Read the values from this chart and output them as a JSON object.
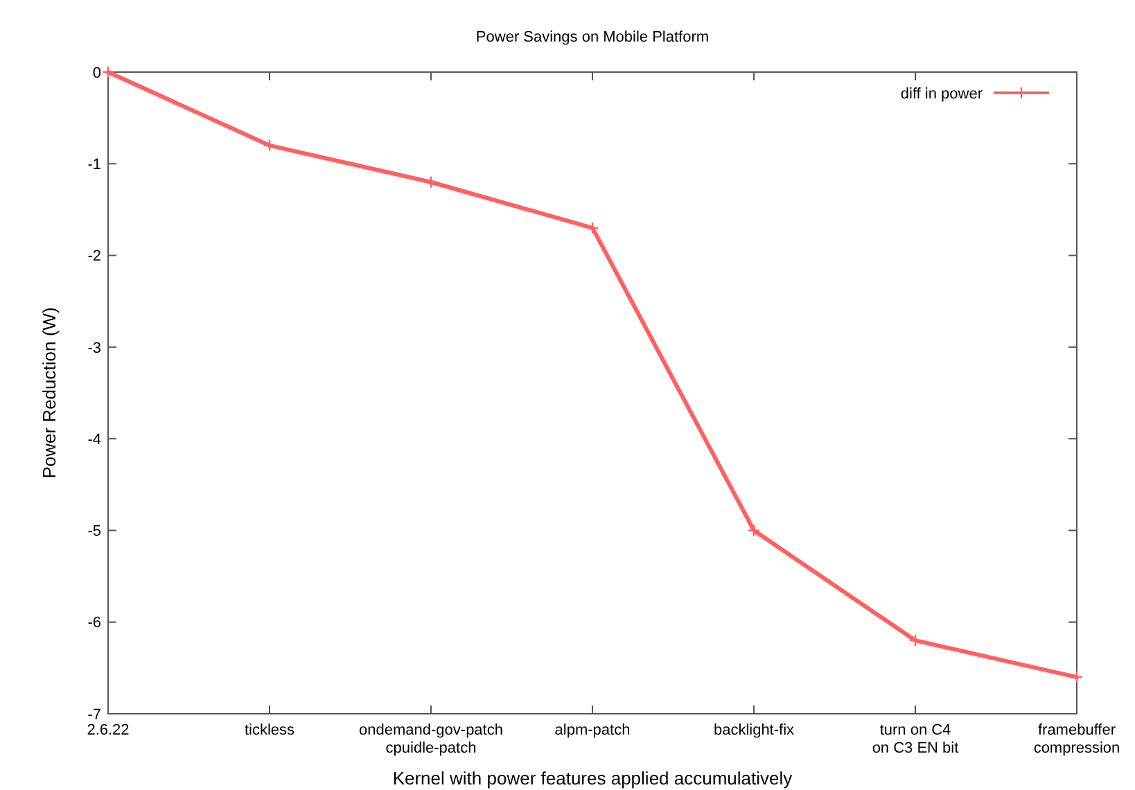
{
  "chart_data": {
    "type": "line",
    "title": "Power Savings on Mobile Platform",
    "xlabel": "Kernel with power features applied accumulatively",
    "ylabel": "Power Reduction (W)",
    "categories": [
      "2.6.22",
      "tickless",
      "ondemand-gov-patch\ncpuidle-patch",
      "alpm-patch",
      "backlight-fix",
      "turn on C4\non C3 EN bit",
      "framebuffer\ncompression"
    ],
    "series": [
      {
        "name": "diff in power",
        "color": "#ff6060",
        "values": [
          0,
          -0.8,
          -1.2,
          -1.7,
          -5.0,
          -6.2,
          -6.6
        ]
      }
    ],
    "ylim": [
      -7,
      0
    ],
    "yticks": [
      -7,
      -6,
      -5,
      -4,
      -3,
      -2,
      -1,
      0
    ],
    "legend": "top right",
    "marker": "cross",
    "line_style": "solid",
    "grid": false
  }
}
